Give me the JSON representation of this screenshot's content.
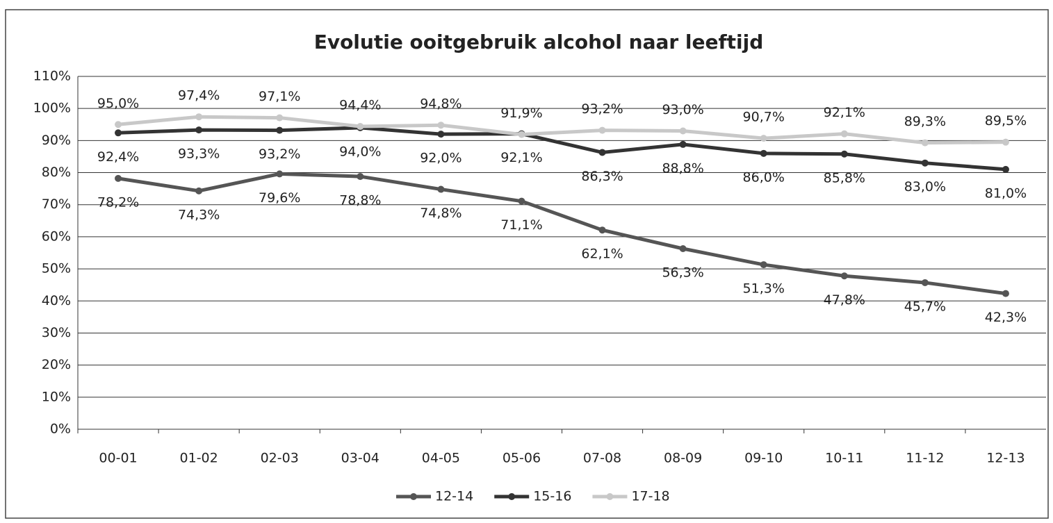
{
  "chart_data": {
    "type": "line",
    "title": "Evolutie ooitgebruik alcohol naar leeftijd",
    "categories": [
      "00-01",
      "01-02",
      "02-03",
      "03-04",
      "04-05",
      "05-06",
      "07-08",
      "08-09",
      "09-10",
      "10-11",
      "11-12",
      "12-13"
    ],
    "series": [
      {
        "name": "12-14",
        "color": "#555555",
        "values": [
          78.2,
          74.3,
          79.6,
          78.8,
          74.8,
          71.1,
          62.1,
          56.3,
          51.3,
          47.8,
          45.7,
          42.3
        ],
        "value_labels": [
          "78,2%",
          "74,3%",
          "79,6%",
          "78,8%",
          "74,8%",
          "71,1%",
          "62,1%",
          "56,3%",
          "51,3%",
          "47,8%",
          "45,7%",
          "42,3%"
        ]
      },
      {
        "name": "15-16",
        "color": "#333333",
        "values": [
          92.4,
          93.3,
          93.2,
          94.0,
          92.0,
          92.1,
          86.3,
          88.8,
          86.0,
          85.8,
          83.0,
          81.0
        ],
        "value_labels": [
          "92,4%",
          "93,3%",
          "93,2%",
          "94,0%",
          "92,0%",
          "92,1%",
          "86,3%",
          "88,8%",
          "86,0%",
          "85,8%",
          "83,0%",
          "81,0%"
        ]
      },
      {
        "name": "17-18",
        "color": "#c8c8c8",
        "values": [
          95.0,
          97.4,
          97.1,
          94.4,
          94.8,
          91.9,
          93.2,
          93.0,
          90.7,
          92.1,
          89.3,
          89.5
        ],
        "value_labels": [
          "95,0%",
          "97,4%",
          "97,1%",
          "94,4%",
          "94,8%",
          "91,9%",
          "93,2%",
          "93,0%",
          "90,7%",
          "92,1%",
          "89,3%",
          "89,5%"
        ]
      }
    ],
    "ylim": [
      0,
      110
    ],
    "yticks": [
      {
        "value": 0,
        "label": "0%"
      },
      {
        "value": 10,
        "label": "10%"
      },
      {
        "value": 20,
        "label": "20%"
      },
      {
        "value": 30,
        "label": "30%"
      },
      {
        "value": 40,
        "label": "40%"
      },
      {
        "value": 50,
        "label": "50%"
      },
      {
        "value": 60,
        "label": "60%"
      },
      {
        "value": 70,
        "label": "70%"
      },
      {
        "value": 80,
        "label": "80%"
      },
      {
        "value": 90,
        "label": "90%"
      },
      {
        "value": 100,
        "label": "100%"
      },
      {
        "value": 110,
        "label": "110%"
      }
    ],
    "grid": true,
    "legend": "bottom"
  }
}
